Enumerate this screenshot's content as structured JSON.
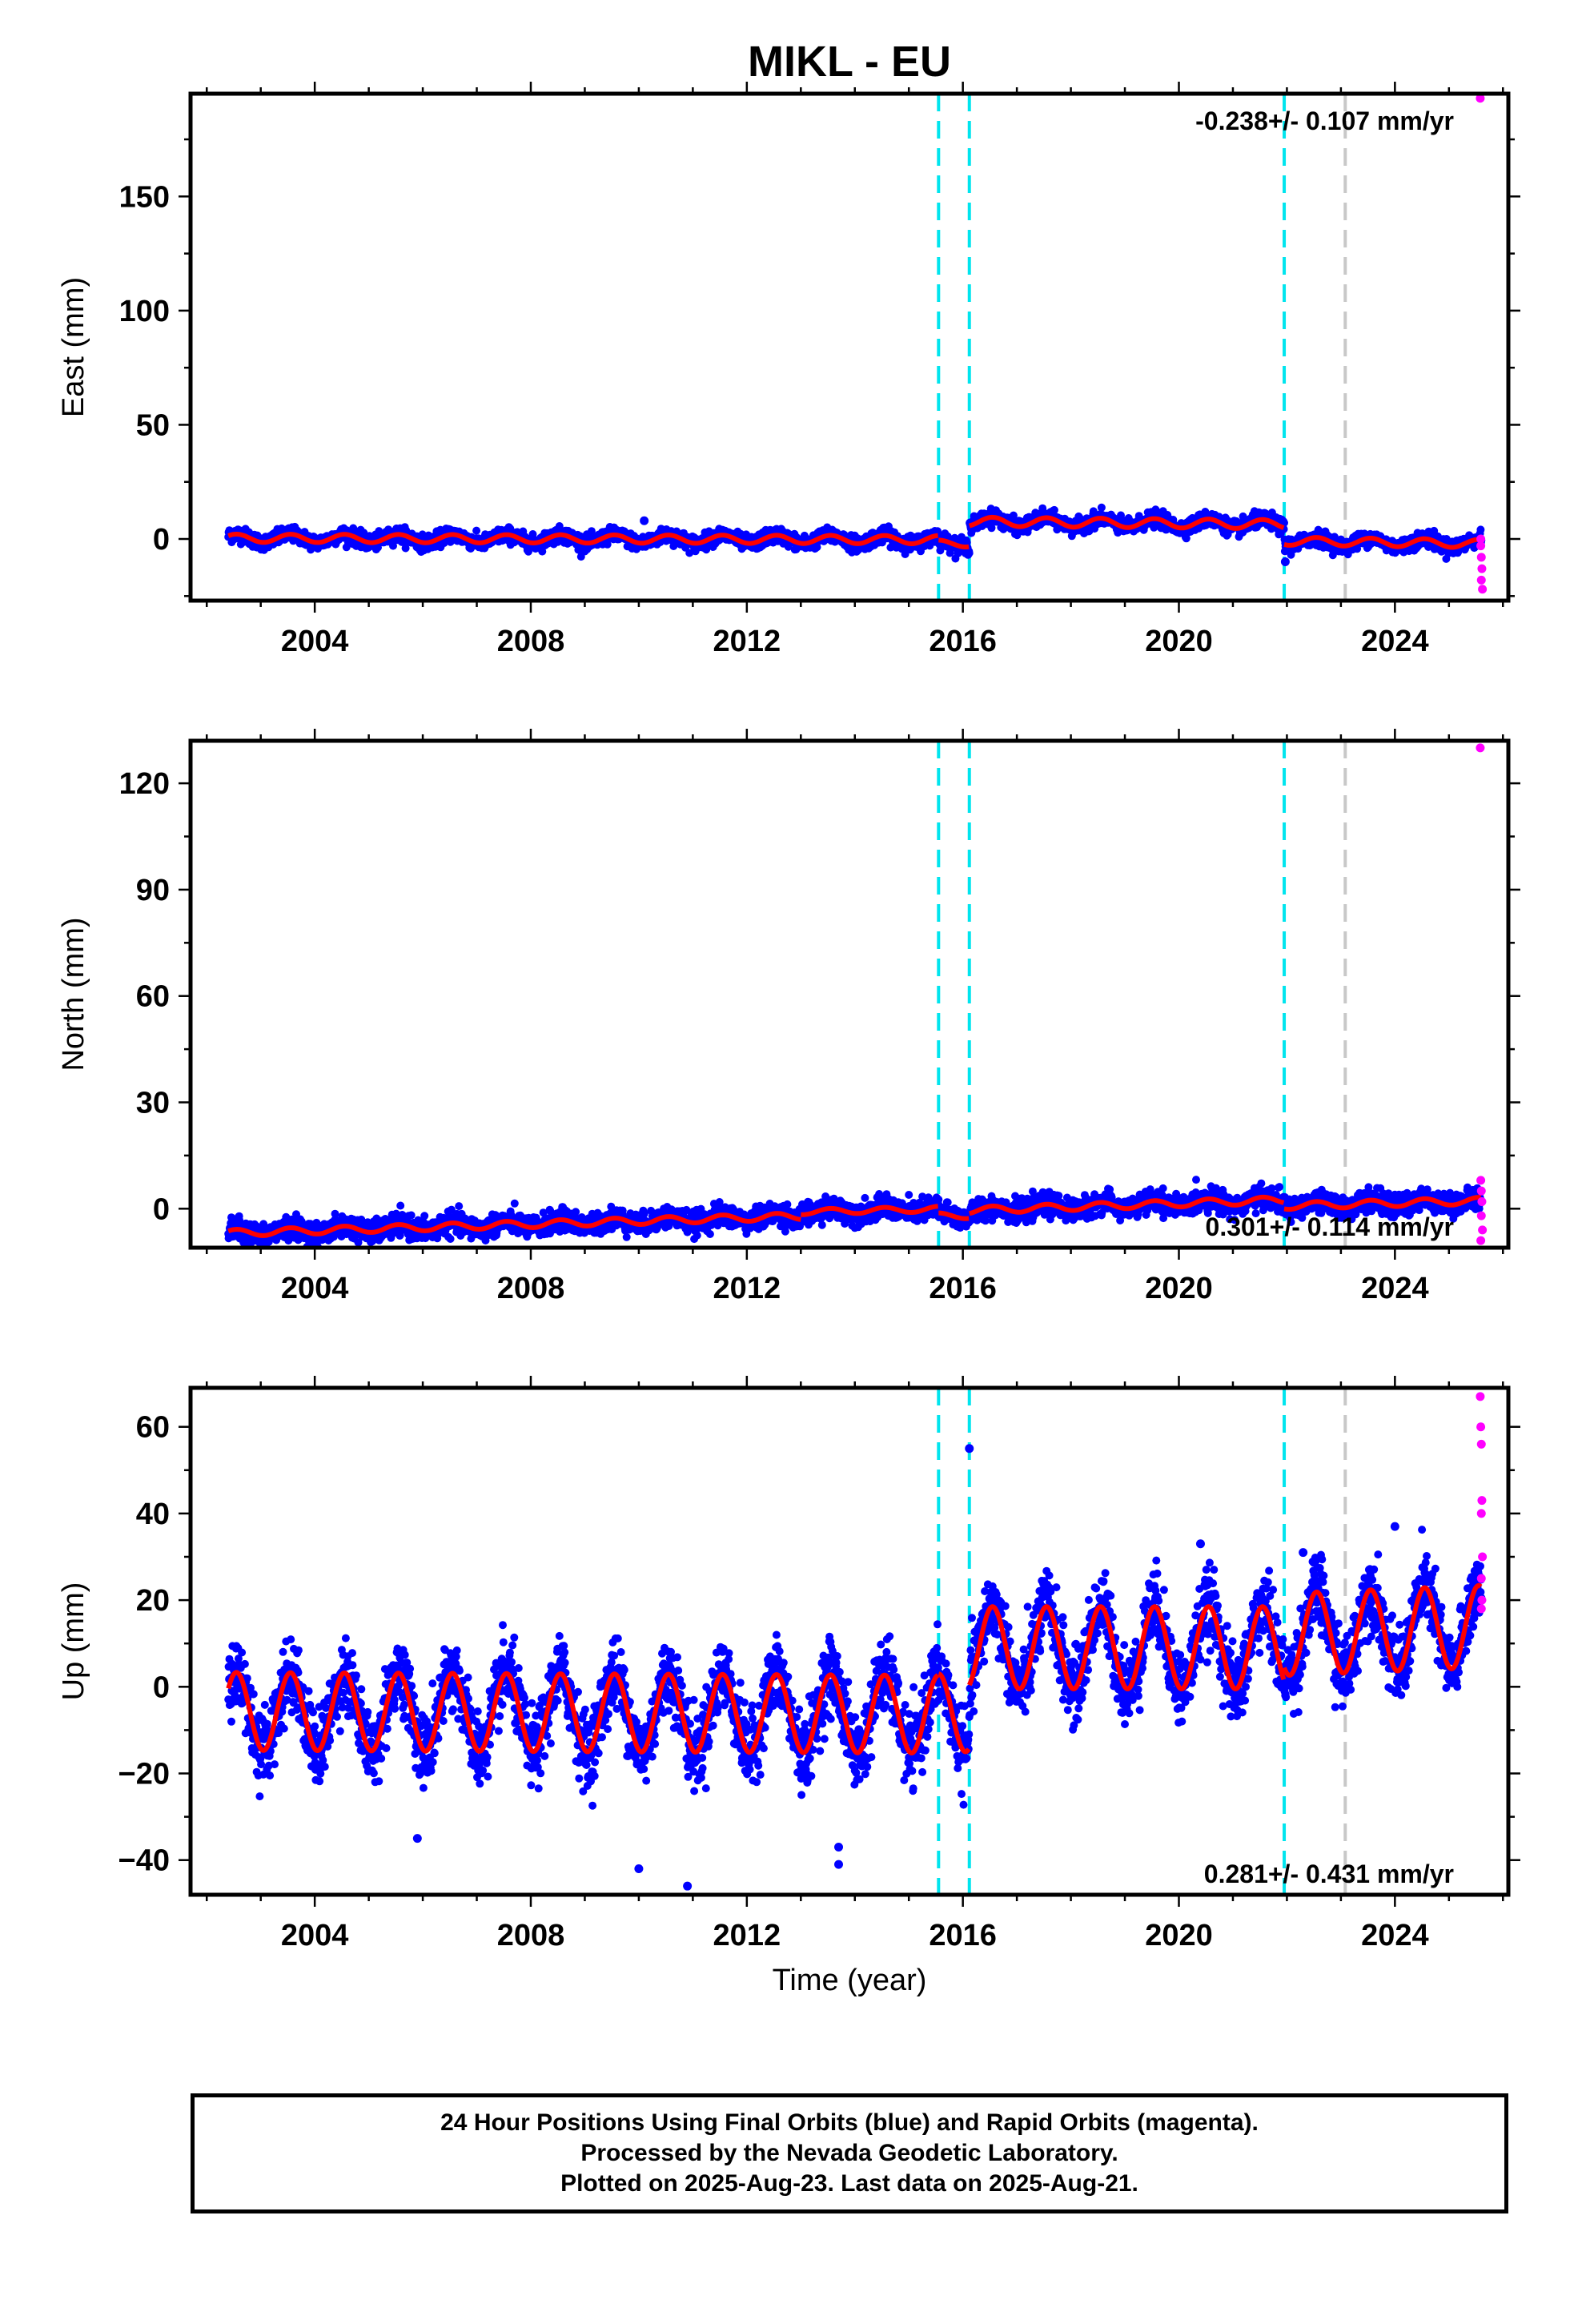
{
  "figure": {
    "title": "MIKL - EU",
    "xlabel": "Time (year)",
    "colors": {
      "final_orbits": "#0000ff",
      "rapid_orbits": "#ff00ff",
      "model_fit": "#ff0000",
      "offset_markers": "#00e5ee",
      "other_marker": "#c8c8c8"
    }
  },
  "footer": {
    "line1": "24 Hour Positions Using Final Orbits (blue) and Rapid Orbits (magenta).",
    "line2": "Processed by the Nevada Geodetic Laboratory.",
    "line3": "Plotted on 2025-Aug-23. Last data on 2025-Aug-21."
  },
  "chart_data": [
    {
      "type": "scatter",
      "component": "East",
      "ylabel": "East (mm)",
      "xlim": [
        2001.7,
        2026.1
      ],
      "ylim": [
        -27,
        195
      ],
      "x_ticks": [
        2004,
        2008,
        2012,
        2016,
        2020,
        2024
      ],
      "y_ticks": [
        0,
        50,
        100,
        150
      ],
      "velocity_label": "-0.238+/- 0.107 mm/yr",
      "velocity_label_position": "top-right",
      "offset_epochs": [
        2015.55,
        2016.12,
        2021.95
      ],
      "other_epochs": [
        2023.08
      ],
      "model_segments": [
        {
          "from": 2002.4,
          "to": 2015.55,
          "level": 0.0,
          "trend": -0.05,
          "amplitude": 1.8
        },
        {
          "from": 2015.55,
          "to": 2016.12,
          "level": -2.0,
          "trend": 0.0,
          "amplitude": 1.5
        },
        {
          "from": 2016.12,
          "to": 2021.95,
          "level": 7.0,
          "trend": -0.2,
          "amplitude": 2.0
        },
        {
          "from": 2021.95,
          "to": 2025.6,
          "level": -1.5,
          "trend": -0.3,
          "amplitude": 1.8
        }
      ],
      "final_scatter_sd": 1.6,
      "outliers_final": [
        [
          2010.1,
          8
        ],
        [
          2021.97,
          -10
        ]
      ],
      "rapid_points": [
        [
          2025.58,
          193
        ],
        [
          2025.59,
          -3
        ],
        [
          2025.6,
          -8
        ],
        [
          2025.61,
          -13
        ],
        [
          2025.62,
          -22
        ],
        [
          2025.6,
          -18
        ],
        [
          2025.59,
          0
        ]
      ]
    },
    {
      "type": "scatter",
      "component": "North",
      "ylabel": "North (mm)",
      "xlim": [
        2001.7,
        2026.1
      ],
      "ylim": [
        -11,
        132
      ],
      "x_ticks": [
        2004,
        2008,
        2012,
        2016,
        2020,
        2024
      ],
      "y_ticks": [
        0,
        30,
        60,
        90,
        120
      ],
      "velocity_label": "0.301+/- 0.114 mm/yr",
      "velocity_label_position": "bottom-right",
      "offset_epochs": [
        2015.55,
        2016.12,
        2021.95
      ],
      "other_epochs": [
        2023.08
      ],
      "model_segments": [
        {
          "from": 2002.4,
          "to": 2013.0,
          "level": -4.5,
          "trend": 0.45,
          "amplitude": 1.0
        },
        {
          "from": 2013.0,
          "to": 2015.55,
          "level": -0.5,
          "trend": 0.3,
          "amplitude": 0.8
        },
        {
          "from": 2015.55,
          "to": 2016.12,
          "level": -2.0,
          "trend": 0.0,
          "amplitude": 0.8
        },
        {
          "from": 2016.12,
          "to": 2021.95,
          "level": 1.0,
          "trend": 0.5,
          "amplitude": 1.0
        },
        {
          "from": 2021.95,
          "to": 2025.6,
          "level": 1.5,
          "trend": 0.4,
          "amplitude": 1.0
        }
      ],
      "final_scatter_sd": 1.5,
      "outliers_final": [],
      "rapid_points": [
        [
          2025.58,
          130
        ],
        [
          2025.59,
          8
        ],
        [
          2025.6,
          5
        ],
        [
          2025.61,
          2
        ],
        [
          2025.6,
          -2
        ],
        [
          2025.62,
          -6
        ],
        [
          2025.59,
          -9
        ]
      ]
    },
    {
      "type": "scatter",
      "component": "Up",
      "ylabel": "Up (mm)",
      "xlim": [
        2001.7,
        2026.1
      ],
      "ylim": [
        -48,
        69
      ],
      "x_ticks": [
        2004,
        2008,
        2012,
        2016,
        2020,
        2024
      ],
      "y_ticks": [
        -40,
        -20,
        0,
        20,
        40,
        60
      ],
      "velocity_label": "0.281+/- 0.431 mm/yr",
      "velocity_label_position": "bottom-right",
      "offset_epochs": [
        2015.55,
        2016.12,
        2021.95
      ],
      "other_epochs": [
        2023.08
      ],
      "model_segments": [
        {
          "from": 2002.4,
          "to": 2015.55,
          "level": -6.0,
          "trend": -0.05,
          "amplitude": 9.0
        },
        {
          "from": 2015.55,
          "to": 2016.12,
          "level": -6.0,
          "trend": 0.0,
          "amplitude": 9.0
        },
        {
          "from": 2016.12,
          "to": 2021.95,
          "level": 9.0,
          "trend": 0.0,
          "amplitude": 9.5
        },
        {
          "from": 2021.95,
          "to": 2025.6,
          "level": 13.0,
          "trend": 0.5,
          "amplitude": 9.5
        }
      ],
      "final_scatter_sd": 4.2,
      "outliers_final": [
        [
          2016.12,
          55
        ],
        [
          2005.9,
          -35
        ],
        [
          2010.0,
          -42
        ],
        [
          2010.9,
          -46
        ],
        [
          2013.7,
          -41
        ],
        [
          2013.7,
          -37
        ],
        [
          2020.4,
          33
        ],
        [
          2022.3,
          31
        ],
        [
          2024.0,
          37
        ]
      ],
      "rapid_points": [
        [
          2025.58,
          67
        ],
        [
          2025.59,
          60
        ],
        [
          2025.6,
          56
        ],
        [
          2025.61,
          43
        ],
        [
          2025.6,
          40
        ],
        [
          2025.62,
          30
        ],
        [
          2025.6,
          25
        ],
        [
          2025.61,
          20
        ],
        [
          2025.6,
          18
        ]
      ]
    }
  ]
}
